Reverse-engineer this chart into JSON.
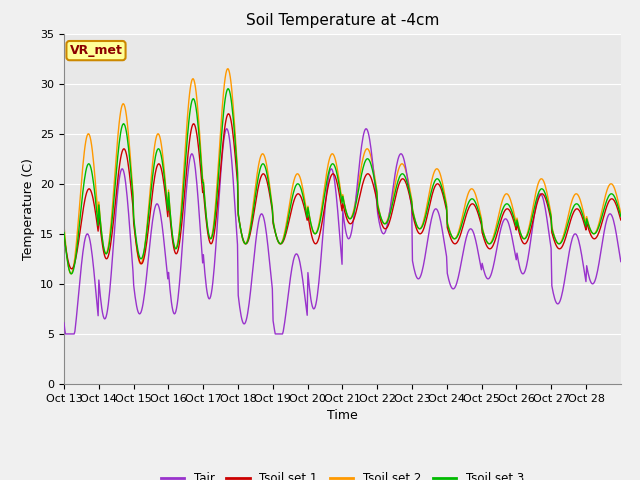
{
  "title": "Soil Temperature at -4cm",
  "xlabel": "Time",
  "ylabel": "Temperature (C)",
  "ylim": [
    0,
    35
  ],
  "annotation": "VR_met",
  "background_color": "#e8e8e8",
  "fig_color": "#f0f0f0",
  "xtick_labels": [
    "Oct 13",
    "Oct 14",
    "Oct 15",
    "Oct 16",
    "Oct 17",
    "Oct 18",
    "Oct 19",
    "Oct 20",
    "Oct 21",
    "Oct 22",
    "Oct 23",
    "Oct 24",
    "Oct 25",
    "Oct 26",
    "Oct 27",
    "Oct 28"
  ],
  "colors": {
    "Tair": "#9933cc",
    "Tsoil1": "#cc0000",
    "Tsoil2": "#ff9900",
    "Tsoil3": "#00bb00"
  },
  "line_width": 1.0,
  "title_fontsize": 11,
  "label_fontsize": 9,
  "tick_fontsize": 8
}
